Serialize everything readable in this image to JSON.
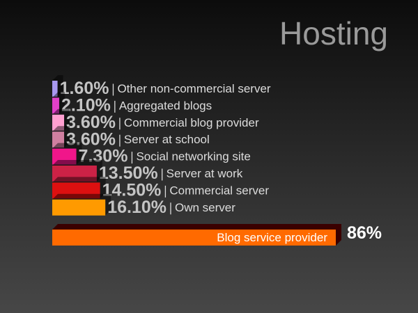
{
  "chart_data": {
    "type": "bar",
    "orientation": "horizontal",
    "title": "Hosting",
    "categories": [
      "Other non-commercial server",
      "Aggregated blogs",
      "Commercial blog provider",
      "Server at school",
      "Social networking site",
      "Server at work",
      "Commercial server",
      "Own server",
      "Blog service provider"
    ],
    "values": [
      1.6,
      2.1,
      3.6,
      3.6,
      7.3,
      13.5,
      14.5,
      16.1,
      86
    ],
    "value_labels": [
      "1.60%",
      "2.10%",
      "3.60%",
      "3.60%",
      "7.30%",
      "13.50%",
      "14.50%",
      "16.10%",
      "86%"
    ],
    "colors": [
      "#a898f0",
      "#e040c8",
      "#ff9fd0",
      "#d07fa0",
      "#f0168a",
      "#cc2246",
      "#dd1010",
      "#ff9a00",
      "#ff6a00"
    ]
  }
}
